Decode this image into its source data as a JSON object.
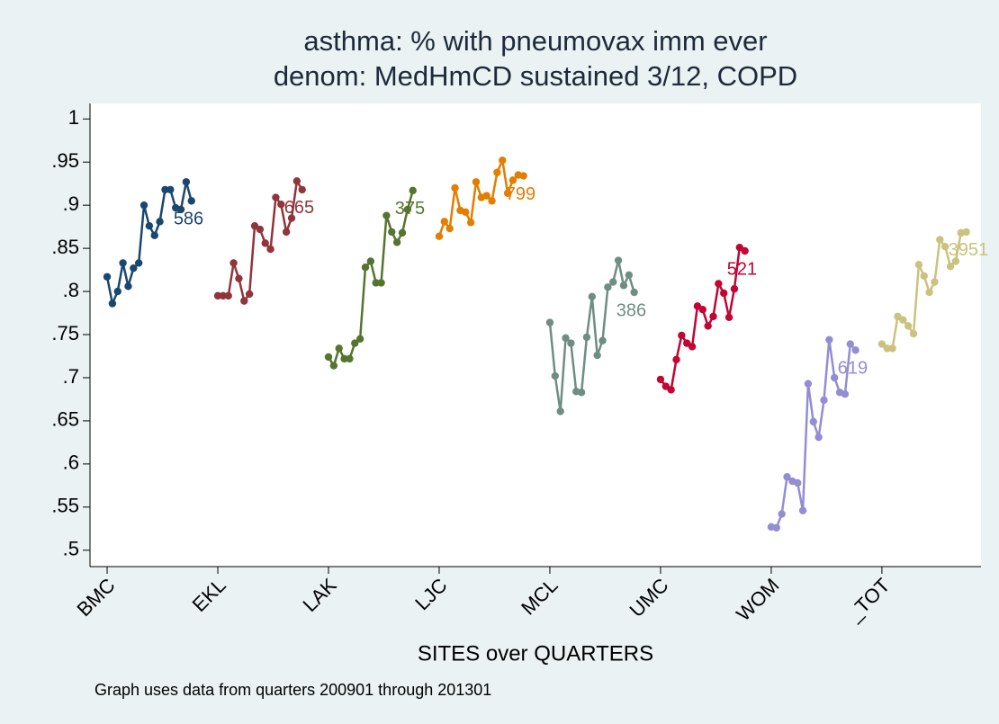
{
  "chart_data": {
    "type": "line",
    "title": [
      "asthma: % with pneumovax imm ever",
      "denom: MedHmCD sustained 3/12, COPD"
    ],
    "x_label": "SITES over QUARTERS",
    "note": "Graph uses data from quarters 200901 through 201301",
    "xlim": [
      -3.25,
      165.8
    ],
    "ylim": [
      0.481,
      1.018
    ],
    "xticks": [
      {
        "value": 0,
        "label": "BMC"
      },
      {
        "value": 21,
        "label": "EKL"
      },
      {
        "value": 42,
        "label": "LAK"
      },
      {
        "value": 63,
        "label": "LJC"
      },
      {
        "value": 84,
        "label": "MCL"
      },
      {
        "value": 105,
        "label": "UMC"
      },
      {
        "value": 126,
        "label": "WOM"
      },
      {
        "value": 147,
        "label": "_TOT"
      }
    ],
    "yticks": [
      {
        "value": 0.5,
        "label": ".5"
      },
      {
        "value": 0.55,
        "label": ".55"
      },
      {
        "value": 0.6,
        "label": ".6"
      },
      {
        "value": 0.65,
        "label": ".65"
      },
      {
        "value": 0.7,
        "label": ".7"
      },
      {
        "value": 0.75,
        "label": ".75"
      },
      {
        "value": 0.8,
        "label": ".8"
      },
      {
        "value": 0.85,
        "label": ".85"
      },
      {
        "value": 0.9,
        "label": ".9"
      },
      {
        "value": 0.95,
        "label": ".95"
      },
      1
    ],
    "grid": false,
    "series": [
      {
        "name": "BMC",
        "color": "#1a476f",
        "marker_label": "586",
        "x": [
          0,
          1,
          2,
          3,
          4,
          5,
          6,
          7,
          8,
          9,
          10,
          11,
          12,
          13,
          14,
          15,
          16
        ],
        "values": [
          0.817,
          0.786,
          0.8,
          0.833,
          0.806,
          0.827,
          0.833,
          0.9,
          0.876,
          0.865,
          0.881,
          0.918,
          0.918,
          0.897,
          0.895,
          0.927,
          0.905
        ]
      },
      {
        "name": "EKL",
        "color": "#90353b",
        "marker_label": "665",
        "x": [
          21,
          22,
          23,
          24,
          25,
          26,
          27,
          28,
          29,
          30,
          31,
          32,
          33,
          34,
          35,
          36,
          37
        ],
        "values": [
          0.795,
          0.795,
          0.795,
          0.833,
          0.815,
          0.789,
          0.797,
          0.876,
          0.872,
          0.856,
          0.849,
          0.909,
          0.901,
          0.869,
          0.885,
          0.928,
          0.918
        ]
      },
      {
        "name": "LAK",
        "color": "#55752f",
        "marker_label": "375",
        "x": [
          42,
          43,
          44,
          45,
          46,
          47,
          48,
          49,
          50,
          51,
          52,
          53,
          54,
          55,
          56,
          57,
          58
        ],
        "values": [
          0.724,
          0.714,
          0.734,
          0.722,
          0.722,
          0.74,
          0.745,
          0.828,
          0.835,
          0.81,
          0.81,
          0.888,
          0.869,
          0.857,
          0.868,
          0.895,
          0.917
        ]
      },
      {
        "name": "LJC",
        "color": "#e37e00",
        "marker_label": "799",
        "x": [
          63,
          64,
          65,
          66,
          67,
          68,
          69,
          70,
          71,
          72,
          73,
          74,
          75,
          76,
          77,
          78,
          79
        ],
        "values": [
          0.864,
          0.881,
          0.873,
          0.92,
          0.894,
          0.892,
          0.88,
          0.927,
          0.909,
          0.911,
          0.905,
          0.938,
          0.952,
          0.914,
          0.929,
          0.935,
          0.934
        ]
      },
      {
        "name": "MCL",
        "color": "#6e8e84",
        "marker_label": "386",
        "x": [
          84,
          85,
          86,
          87,
          88,
          89,
          90,
          91,
          92,
          93,
          94,
          95,
          96,
          97,
          98,
          99,
          100
        ],
        "values": [
          0.764,
          0.702,
          0.661,
          0.746,
          0.74,
          0.684,
          0.683,
          0.747,
          0.794,
          0.726,
          0.743,
          0.805,
          0.811,
          0.836,
          0.807,
          0.819,
          0.799
        ]
      },
      {
        "name": "UMC",
        "color": "#c10534",
        "marker_label": "521",
        "x": [
          105,
          106,
          107,
          108,
          109,
          110,
          111,
          112,
          113,
          114,
          115,
          116,
          117,
          118,
          119,
          120,
          121
        ],
        "values": [
          0.698,
          0.69,
          0.686,
          0.721,
          0.749,
          0.74,
          0.736,
          0.783,
          0.779,
          0.76,
          0.771,
          0.809,
          0.798,
          0.77,
          0.803,
          0.851,
          0.847
        ]
      },
      {
        "name": "WOM",
        "color": "#938dd2",
        "marker_label": "619",
        "x": [
          126,
          127,
          128,
          129,
          130,
          131,
          132,
          133,
          134,
          135,
          136,
          137,
          138,
          139,
          140,
          141,
          142
        ],
        "values": [
          0.527,
          0.526,
          0.542,
          0.585,
          0.58,
          0.578,
          0.546,
          0.693,
          0.649,
          0.631,
          0.674,
          0.744,
          0.7,
          0.683,
          0.681,
          0.739,
          0.732
        ]
      },
      {
        "name": "_TOT",
        "color": "#cac27e",
        "marker_label": "3951",
        "x": [
          147,
          148,
          149,
          150,
          151,
          152,
          153,
          154,
          155,
          156,
          157,
          158,
          159,
          160,
          161,
          162,
          163
        ],
        "values": [
          0.739,
          0.734,
          0.734,
          0.771,
          0.767,
          0.76,
          0.751,
          0.831,
          0.818,
          0.799,
          0.811,
          0.86,
          0.852,
          0.829,
          0.835,
          0.868,
          0.869
        ]
      }
    ]
  }
}
